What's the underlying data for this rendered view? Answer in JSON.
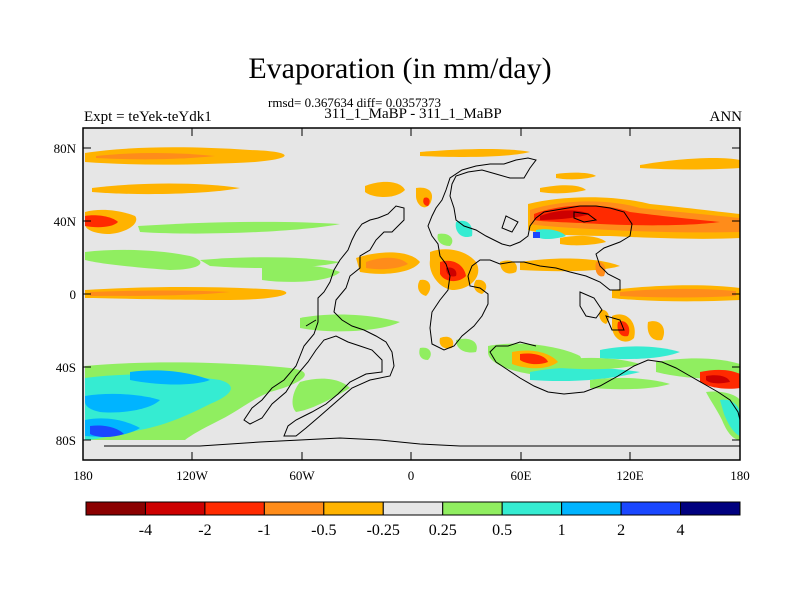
{
  "title": "Evaporation (in mm/day)",
  "stats": "rmsd= 0.367634 diff= 0.0357373",
  "subtitle": "311_1_MaBP - 311_1_MaBP",
  "experiment": "Expt = teYek-teYdk1",
  "season": "ANN",
  "lat_ticks": [
    "80N",
    "40N",
    "0",
    "40S",
    "80S"
  ],
  "lon_ticks": [
    "180",
    "120W",
    "60W",
    "0",
    "60E",
    "120E",
    "180"
  ],
  "colorbar": {
    "colors": [
      "#8b0000",
      "#cd0000",
      "#ff2a00",
      "#ff8c1a",
      "#ffb300",
      "#e6e6e6",
      "#90ee60",
      "#35ecd2",
      "#00b4ff",
      "#1a47ff",
      "#00007f"
    ],
    "labels": [
      "-4",
      "-2",
      "-1",
      "-0.5",
      "-0.25",
      "0.25",
      "0.5",
      "1",
      "2",
      "4"
    ]
  },
  "background_color": "#e6e6e6"
}
